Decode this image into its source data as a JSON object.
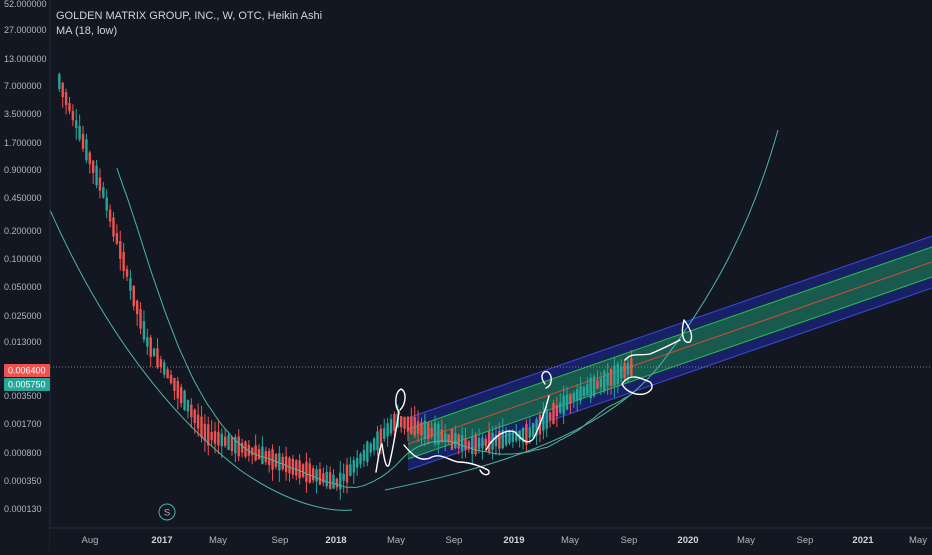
{
  "header": {
    "symbol_line": "GOLDEN MATRIX GROUP, INC., W, OTC, Heikin Ashi",
    "indicator_line": "MA (18, low)"
  },
  "colors": {
    "background": "#131722",
    "up": "#26a69a",
    "down": "#ef5350",
    "ma": "#4fb3a5",
    "channel_outer": "#1e2a9e",
    "channel_inner": "#1b8a3a",
    "channel_mid": "#d04a3c",
    "price_badge_red": "#ef5350",
    "price_badge_green": "#26a69a"
  },
  "chart_data": {
    "type": "candlestick",
    "scale": "log",
    "series_name": "GOLDEN MATRIX GROUP, INC., W, OTC, Heikin Ashi",
    "indicator": "MA (18, low)",
    "y_ticks": [
      "52.000000",
      "27.000000",
      "13.000000",
      "7.000000",
      "3.500000",
      "1.700000",
      "0.900000",
      "0.450000",
      "0.200000",
      "0.100000",
      "0.050000",
      "0.025000",
      "0.013000",
      "0.003500",
      "0.001700",
      "0.000800",
      "0.000350",
      "0.000130"
    ],
    "x_ticks": [
      {
        "label": "Aug",
        "bold": false
      },
      {
        "label": "2017",
        "bold": true
      },
      {
        "label": "May",
        "bold": false
      },
      {
        "label": "Sep",
        "bold": false
      },
      {
        "label": "2018",
        "bold": true
      },
      {
        "label": "May",
        "bold": false
      },
      {
        "label": "Sep",
        "bold": false
      },
      {
        "label": "2019",
        "bold": true
      },
      {
        "label": "May",
        "bold": false
      },
      {
        "label": "Sep",
        "bold": false
      },
      {
        "label": "2020",
        "bold": true
      },
      {
        "label": "May",
        "bold": false
      },
      {
        "label": "Sep",
        "bold": false
      },
      {
        "label": "2021",
        "bold": true
      },
      {
        "label": "May",
        "bold": false
      }
    ],
    "price_labels": [
      {
        "value": "0.006400",
        "color": "#ef5350"
      },
      {
        "value": "0.005750",
        "color": "#26a69a"
      }
    ],
    "last_price": 0.0064,
    "marker": "S",
    "trend": [
      {
        "date": "2016-06",
        "price": 8.0
      },
      {
        "date": "2016-09",
        "price": 0.5
      },
      {
        "date": "2016-12",
        "price": 0.012
      },
      {
        "date": "2017-04",
        "price": 0.0012
      },
      {
        "date": "2017-09",
        "price": 0.0006
      },
      {
        "date": "2018-01",
        "price": 0.00035
      },
      {
        "date": "2018-05",
        "price": 0.0017
      },
      {
        "date": "2018-10",
        "price": 0.0009
      },
      {
        "date": "2019-02",
        "price": 0.0012
      },
      {
        "date": "2019-05",
        "price": 0.003
      },
      {
        "date": "2019-09",
        "price": 0.0064
      }
    ]
  }
}
